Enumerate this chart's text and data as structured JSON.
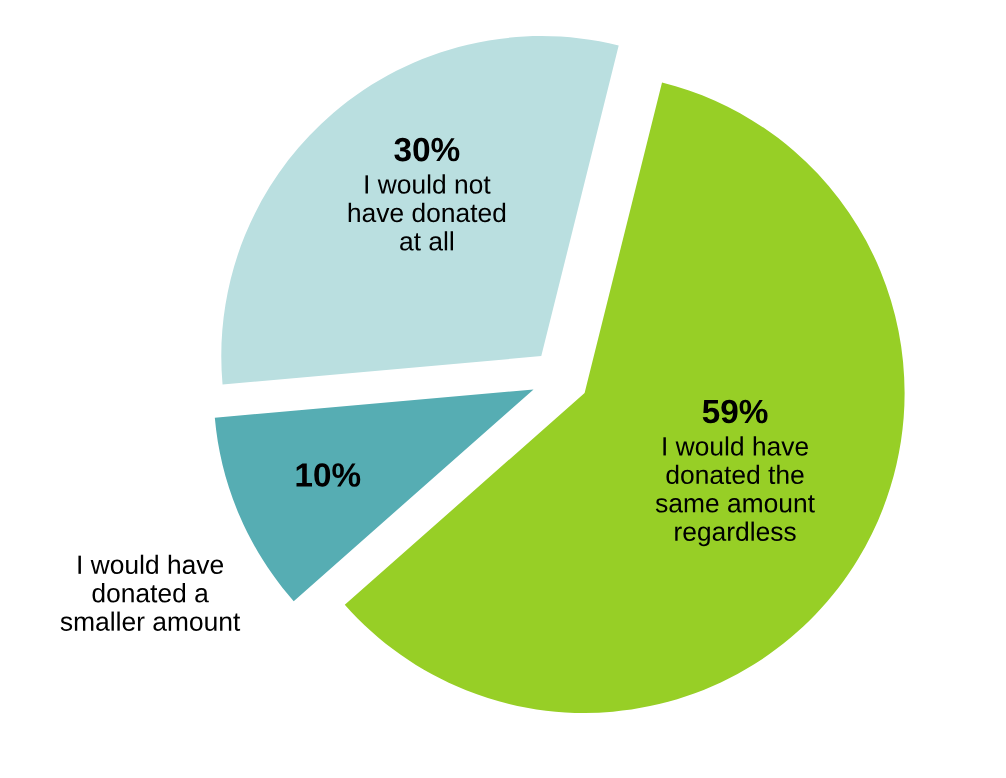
{
  "chart_data": {
    "type": "pie",
    "categories": [
      "I would have donated the same amount regardless",
      "I would have donated a smaller amount",
      "I would not have donated at all"
    ],
    "values": [
      59,
      10,
      30
    ],
    "colors": [
      "#97cf26",
      "#56adb3",
      "#badfe0"
    ],
    "value_labels": [
      "59%",
      "10%",
      "30%"
    ]
  }
}
